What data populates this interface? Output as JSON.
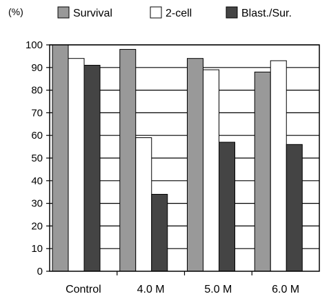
{
  "chart_data": {
    "type": "bar",
    "unit_label": "(%)",
    "categories": [
      "Control",
      "4.0 M",
      "5.0 M",
      "6.0 M"
    ],
    "series": [
      {
        "name": "Survival",
        "values": [
          100,
          98,
          94,
          88
        ]
      },
      {
        "name": "2-cell",
        "values": [
          94,
          59,
          89,
          93
        ]
      },
      {
        "name": "Blast./Sur.",
        "values": [
          91,
          34,
          57,
          56
        ]
      }
    ],
    "ylim": [
      0,
      100
    ],
    "yticks": [
      0,
      10,
      20,
      30,
      40,
      50,
      60,
      70,
      80,
      90,
      100
    ],
    "grid": true,
    "legend_position": "top",
    "colors": [
      "#999999",
      "#ffffff",
      "#444444"
    ]
  }
}
